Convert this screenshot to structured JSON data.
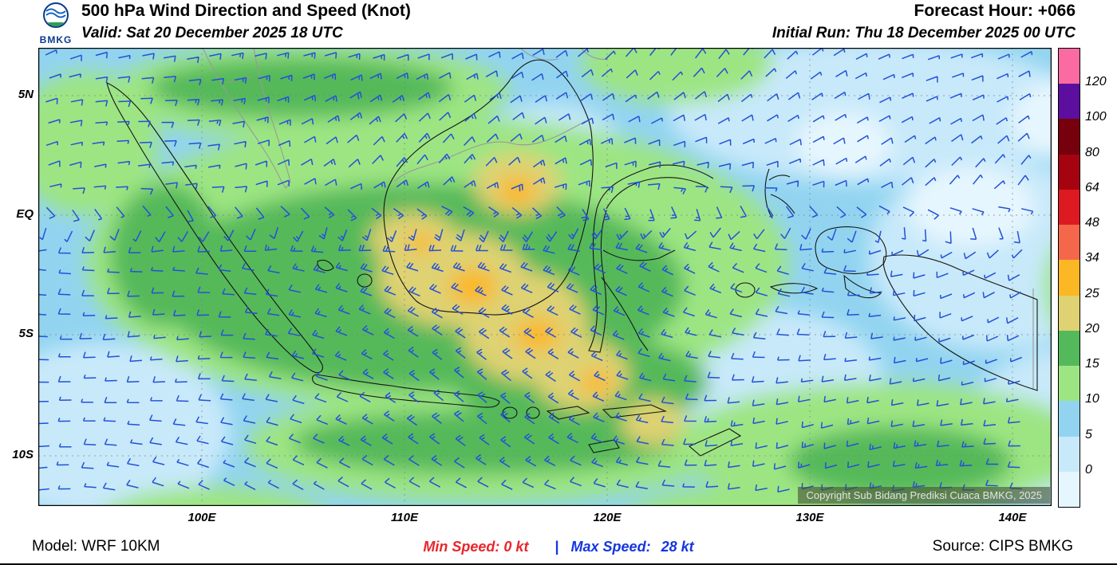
{
  "header": {
    "logo_text": "BMKG",
    "title": "500 hPa Wind Direction and Speed (Knot)",
    "valid_line": "Valid: Sat 20 December 2025 18 UTC",
    "forecast_hour": "Forecast Hour: +066",
    "initial_run": "Initial Run: Thu 18 December 2025 00 UTC"
  },
  "map": {
    "lat_ticks": [
      "5N",
      "EQ",
      "5S",
      "10S"
    ],
    "lon_ticks": [
      "100E",
      "110E",
      "120E",
      "130E",
      "140E"
    ],
    "copyright": "Copyright Sub Bidang Prediksi Cuaca BMKG, 2025",
    "wind_barb_color": "#2351d8",
    "coast_color": "#151515",
    "foreign_border_color": "#999999",
    "gridline_color": "#808080"
  },
  "legend": {
    "labels_top_to_bottom": [
      "120",
      "100",
      "80",
      "64",
      "48",
      "34",
      "25",
      "20",
      "15",
      "10",
      "5",
      "0"
    ],
    "segment_colors_top_to_bottom": [
      "#fa6ba2",
      "#5c0f9e",
      "#77000d",
      "#a50310",
      "#dd1a21",
      "#f4674b",
      "#fcb724",
      "#ded272",
      "#54b95a",
      "#9de583",
      "#92d4f0",
      "#c8e9fa",
      "#e6f6fe"
    ],
    "band_colors": {
      "calm": "#e6f6fe",
      "b0_5": "#c8e9fa",
      "b5_10": "#92d4f0",
      "b10_15": "#9de583",
      "b15_20": "#54b95a",
      "b20_25": "#ded272",
      "b25_34": "#fcb724"
    }
  },
  "footer": {
    "model": "Model: WRF 10KM",
    "min_speed_label": "Min Speed:",
    "min_speed_value": "0 kt",
    "separator": "|",
    "max_speed_label": "Max Speed:",
    "max_speed_value": "28 kt",
    "source": "Source: CIPS BMKG",
    "min_color": "#e8262c",
    "max_color": "#1535e0"
  }
}
